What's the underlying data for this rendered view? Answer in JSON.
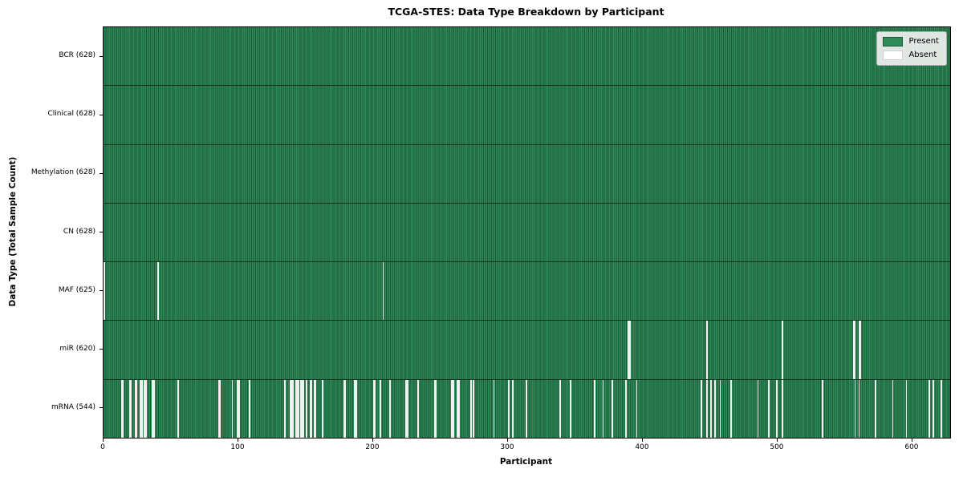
{
  "title": "TCGA-STES: Data Type Breakdown by Participant",
  "xlabel": "Participant",
  "ylabel": "Data Type (Total Sample Count)",
  "legend": {
    "present_label": "Present",
    "absent_label": "Absent"
  },
  "colors": {
    "present": "#2e8b57",
    "present_edge": "#1c5737",
    "absent": "#f0f0f0",
    "row_divider": "#12301f",
    "legend_bg": "#f0f0f0",
    "legend_border": "#b0b0b0",
    "axis": "#000000"
  },
  "chart_data": {
    "type": "heatmap",
    "title": "TCGA-STES: Data Type Breakdown by Participant",
    "xlabel": "Participant",
    "ylabel": "Data Type (Total Sample Count)",
    "legend_entries": [
      "Present",
      "Absent"
    ],
    "legend_position": "upper right",
    "n_participants": 628,
    "xlim": [
      0,
      628
    ],
    "x_ticks": [
      0,
      100,
      200,
      300,
      400,
      500,
      600
    ],
    "rows": [
      {
        "name": "BCR",
        "label": "BCR (628)",
        "present_count": 628,
        "absent_participants": []
      },
      {
        "name": "Clinical",
        "label": "Clinical (628)",
        "present_count": 628,
        "absent_participants": []
      },
      {
        "name": "Methylation",
        "label": "Methylation (628)",
        "present_count": 628,
        "absent_participants": []
      },
      {
        "name": "CN",
        "label": "CN (628)",
        "present_count": 628,
        "absent_participants": []
      },
      {
        "name": "MAF",
        "label": "MAF (625)",
        "present_count": 625,
        "absent_participants": [
          0,
          40,
          207
        ]
      },
      {
        "name": "miR",
        "label": "miR (620)",
        "present_count": 620,
        "absent_participants": [
          389,
          390,
          447,
          503,
          556,
          557,
          560,
          561
        ]
      },
      {
        "name": "mRNA",
        "label": "mRNA (544)",
        "present_count": 544,
        "absent_participants": [
          13,
          14,
          19,
          20,
          23,
          24,
          27,
          28,
          30,
          31,
          36,
          37,
          55,
          85,
          86,
          95,
          99,
          100,
          108,
          134,
          138,
          139,
          140,
          142,
          143,
          144,
          146,
          147,
          148,
          150,
          153,
          154,
          156,
          157,
          162,
          178,
          179,
          186,
          187,
          200,
          201,
          205,
          212,
          224,
          225,
          233,
          245,
          246,
          258,
          259,
          262,
          263,
          272,
          274,
          289,
          300,
          303,
          313,
          338,
          346,
          364,
          370,
          377,
          387,
          395,
          443,
          447,
          450,
          453,
          457,
          465,
          485,
          493,
          499,
          503,
          533,
          557,
          560,
          572,
          585,
          595,
          612,
          615,
          621
        ]
      }
    ]
  }
}
